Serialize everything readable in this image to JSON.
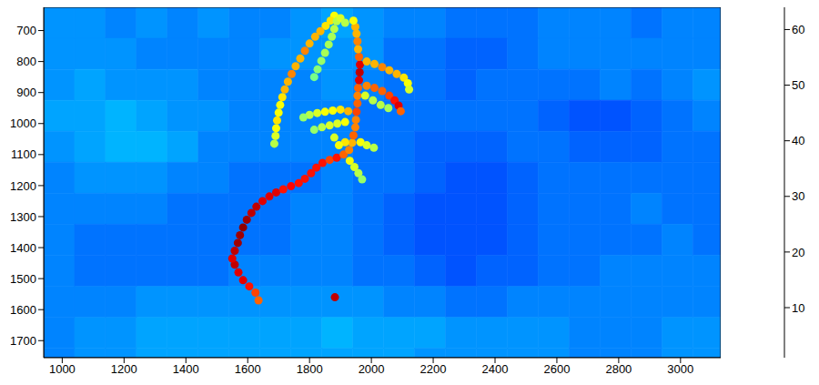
{
  "chart_data": {
    "type": "heatmap",
    "xlim": [
      940,
      3130
    ],
    "xticks": [
      1000,
      1200,
      1400,
      1600,
      1800,
      2000,
      2200,
      2400,
      2600,
      2800,
      3000
    ],
    "ylim": [
      625,
      1755
    ],
    "yticks": [
      700,
      800,
      900,
      1000,
      1100,
      1200,
      1300,
      1400,
      1500,
      1600,
      1700
    ],
    "colorbar_lim": [
      1,
      64
    ],
    "colorbar_ticks": [
      10,
      20,
      30,
      40,
      50,
      60
    ],
    "cells": {
      "x": [
        990,
        1090,
        1190,
        1290,
        1390,
        1490,
        1590,
        1690,
        1790,
        1890,
        1990,
        2090,
        2190,
        2290,
        2390,
        2490,
        2590,
        2690,
        2790,
        2890,
        2990,
        3090
      ],
      "y": [
        675,
        775,
        875,
        975,
        1075,
        1175,
        1275,
        1375,
        1475,
        1575,
        1675,
        1775
      ],
      "values": [
        [
          18,
          18,
          17,
          18,
          17,
          18,
          17,
          17,
          18,
          19,
          18,
          17,
          17,
          16,
          16,
          16,
          17,
          17,
          17,
          16,
          17,
          17
        ],
        [
          18,
          18,
          18,
          17,
          17,
          17,
          17,
          18,
          18,
          18,
          18,
          16,
          16,
          15,
          15,
          16,
          17,
          17,
          17,
          17,
          17,
          17
        ],
        [
          18,
          19,
          18,
          18,
          18,
          17,
          17,
          17,
          17,
          18,
          17,
          16,
          16,
          15,
          16,
          16,
          16,
          16,
          17,
          16,
          17,
          18
        ],
        [
          19,
          19,
          20,
          19,
          18,
          18,
          17,
          17,
          17,
          17,
          16,
          16,
          16,
          16,
          16,
          16,
          15,
          14,
          14,
          15,
          16,
          17
        ],
        [
          18,
          19,
          20,
          20,
          19,
          17,
          17,
          17,
          17,
          17,
          16,
          16,
          15,
          15,
          15,
          16,
          16,
          15,
          15,
          15,
          16,
          16
        ],
        [
          17,
          18,
          18,
          18,
          17,
          17,
          16,
          16,
          16,
          17,
          16,
          16,
          15,
          14,
          14,
          15,
          16,
          16,
          16,
          16,
          16,
          16
        ],
        [
          17,
          17,
          17,
          17,
          16,
          16,
          16,
          16,
          17,
          17,
          16,
          15,
          14,
          14,
          14,
          15,
          16,
          16,
          16,
          17,
          16,
          16
        ],
        [
          17,
          16,
          16,
          16,
          16,
          16,
          16,
          16,
          17,
          17,
          16,
          15,
          14,
          14,
          14,
          15,
          16,
          16,
          16,
          16,
          17,
          16
        ],
        [
          17,
          16,
          16,
          16,
          16,
          16,
          17,
          17,
          17,
          17,
          16,
          16,
          15,
          14,
          15,
          15,
          16,
          16,
          17,
          17,
          17,
          17
        ],
        [
          17,
          17,
          17,
          18,
          18,
          18,
          18,
          18,
          18,
          18,
          18,
          17,
          17,
          16,
          16,
          17,
          17,
          17,
          17,
          17,
          17,
          17
        ],
        [
          17,
          18,
          18,
          19,
          19,
          19,
          19,
          19,
          19,
          20,
          19,
          19,
          19,
          18,
          18,
          18,
          18,
          17,
          17,
          17,
          18,
          18
        ],
        [
          17,
          18,
          18,
          19,
          19,
          19,
          19,
          19,
          19,
          19,
          19,
          19,
          18,
          18,
          18,
          18,
          18,
          17,
          17,
          17,
          18,
          18
        ]
      ]
    },
    "hot_points": [
      [
        1635,
        1570,
        50
      ],
      [
        1625,
        1545,
        52
      ],
      [
        1605,
        1525,
        55
      ],
      [
        1585,
        1505,
        58
      ],
      [
        1570,
        1480,
        58
      ],
      [
        1558,
        1455,
        60
      ],
      [
        1550,
        1435,
        58
      ],
      [
        1558,
        1410,
        60
      ],
      [
        1568,
        1385,
        62
      ],
      [
        1575,
        1360,
        62
      ],
      [
        1585,
        1335,
        63
      ],
      [
        1597,
        1310,
        62
      ],
      [
        1612,
        1288,
        60
      ],
      [
        1628,
        1268,
        60
      ],
      [
        1648,
        1250,
        58
      ],
      [
        1670,
        1235,
        58
      ],
      [
        1692,
        1222,
        58
      ],
      [
        1715,
        1212,
        55
      ],
      [
        1740,
        1202,
        56
      ],
      [
        1765,
        1192,
        55
      ],
      [
        1785,
        1178,
        55
      ],
      [
        1805,
        1160,
        55
      ],
      [
        1822,
        1142,
        55
      ],
      [
        1842,
        1127,
        55
      ],
      [
        1865,
        1117,
        52
      ],
      [
        1888,
        1110,
        55
      ],
      [
        1910,
        1100,
        50
      ],
      [
        1928,
        1085,
        48
      ],
      [
        1938,
        1062,
        45
      ],
      [
        1942,
        1038,
        50
      ],
      [
        1948,
        1012,
        48
      ],
      [
        1950,
        988,
        48
      ],
      [
        1952,
        962,
        52
      ],
      [
        1955,
        935,
        50
      ],
      [
        1955,
        910,
        48
      ],
      [
        1957,
        885,
        50
      ],
      [
        1960,
        860,
        58
      ],
      [
        1962,
        835,
        60
      ],
      [
        1963,
        810,
        58
      ],
      [
        1960,
        785,
        50
      ],
      [
        1957,
        760,
        45
      ],
      [
        1955,
        735,
        48
      ],
      [
        1952,
        710,
        45
      ],
      [
        1948,
        688,
        45
      ],
      [
        1942,
        668,
        40
      ],
      [
        1880,
        652,
        40
      ],
      [
        1868,
        668,
        42
      ],
      [
        1852,
        685,
        42
      ],
      [
        1835,
        702,
        45
      ],
      [
        1818,
        720,
        45
      ],
      [
        1800,
        742,
        45
      ],
      [
        1785,
        765,
        48
      ],
      [
        1770,
        790,
        45
      ],
      [
        1755,
        815,
        45
      ],
      [
        1742,
        840,
        48
      ],
      [
        1730,
        865,
        45
      ],
      [
        1720,
        890,
        45
      ],
      [
        1712,
        915,
        42
      ],
      [
        1705,
        940,
        40
      ],
      [
        1700,
        965,
        40
      ],
      [
        1695,
        990,
        42
      ],
      [
        1692,
        1015,
        40
      ],
      [
        1690,
        1040,
        38
      ],
      [
        1686,
        1065,
        36
      ],
      [
        1888,
        670,
        36
      ],
      [
        1880,
        695,
        36
      ],
      [
        1872,
        720,
        35
      ],
      [
        1862,
        745,
        35
      ],
      [
        1850,
        772,
        35
      ],
      [
        1838,
        798,
        34
      ],
      [
        1826,
        825,
        33
      ],
      [
        1815,
        850,
        32
      ],
      [
        1900,
        660,
        38
      ],
      [
        1915,
        675,
        36
      ],
      [
        1985,
        800,
        45
      ],
      [
        2010,
        808,
        45
      ],
      [
        2035,
        818,
        48
      ],
      [
        2058,
        828,
        45
      ],
      [
        2082,
        840,
        45
      ],
      [
        2105,
        852,
        42
      ],
      [
        2118,
        870,
        40
      ],
      [
        2122,
        890,
        38
      ],
      [
        1985,
        878,
        48
      ],
      [
        2010,
        885,
        50
      ],
      [
        2035,
        895,
        50
      ],
      [
        2058,
        910,
        52
      ],
      [
        2075,
        925,
        55
      ],
      [
        2088,
        942,
        58
      ],
      [
        2095,
        960,
        50
      ],
      [
        1980,
        910,
        38
      ],
      [
        2005,
        925,
        36
      ],
      [
        2030,
        940,
        36
      ],
      [
        2055,
        950,
        35
      ],
      [
        1925,
        960,
        45
      ],
      [
        1900,
        955,
        42
      ],
      [
        1875,
        958,
        40
      ],
      [
        1850,
        962,
        40
      ],
      [
        1825,
        966,
        38
      ],
      [
        1800,
        972,
        36
      ],
      [
        1780,
        980,
        34
      ],
      [
        1915,
        995,
        40
      ],
      [
        1890,
        1000,
        38
      ],
      [
        1865,
        1006,
        38
      ],
      [
        1840,
        1012,
        36
      ],
      [
        1815,
        1020,
        34
      ],
      [
        1965,
        1060,
        40
      ],
      [
        1985,
        1070,
        38
      ],
      [
        2008,
        1078,
        36
      ],
      [
        1915,
        1060,
        42
      ],
      [
        1895,
        1070,
        40
      ],
      [
        1880,
        1045,
        38
      ],
      [
        1930,
        1120,
        40
      ],
      [
        1945,
        1140,
        38
      ],
      [
        1958,
        1160,
        36
      ],
      [
        1970,
        1180,
        34
      ],
      [
        1882,
        1560,
        60
      ]
    ]
  }
}
